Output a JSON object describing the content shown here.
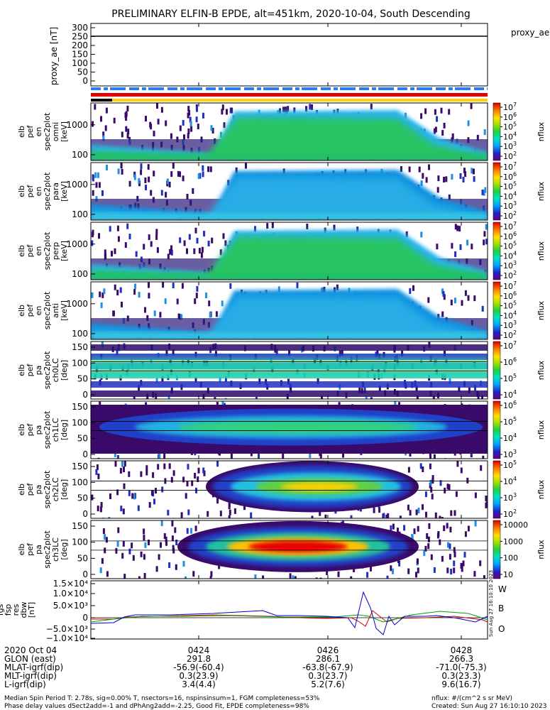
{
  "title": "PRELIMINARY ELFIN-B EPDE, alt=451km, 2020-10-04, South Descending",
  "colors": {
    "W": "#d40000",
    "B": "#00a000",
    "O": "#0000d0"
  },
  "chart_data": [
    {
      "type": "line",
      "panel": "proxy_ae",
      "ylabel": "proxy_ae [nT]",
      "legend": "proxy_ae",
      "yticks": [
        "300",
        "250",
        "200",
        "150",
        "100",
        "50",
        "0"
      ],
      "ylim": [
        -30,
        320
      ],
      "series": [
        {
          "name": "proxy_ae",
          "values": [
            245,
            245
          ]
        }
      ]
    },
    {
      "type": "heatmap",
      "panel": "en-omni",
      "ylabel": [
        "elb",
        "pef",
        "en",
        "spec2plot",
        "omni",
        "[keV]"
      ],
      "yticks": [
        "1000",
        "100"
      ],
      "cbar_label": "nflux",
      "cbar_ticks": [
        [
          "10",
          "7"
        ],
        [
          "10",
          "6"
        ],
        [
          "10",
          "5"
        ],
        [
          "10",
          "4"
        ],
        [
          "10",
          "3"
        ],
        [
          "10",
          "2"
        ]
      ]
    },
    {
      "type": "heatmap",
      "panel": "en-para",
      "ylabel": [
        "elb",
        "pef",
        "en",
        "spec2plot",
        "para",
        "[keV]"
      ],
      "yticks": [
        "1000",
        "100"
      ],
      "cbar_label": "nflux",
      "cbar_ticks": [
        [
          "10",
          "7"
        ],
        [
          "10",
          "6"
        ],
        [
          "10",
          "5"
        ],
        [
          "10",
          "4"
        ],
        [
          "10",
          "3"
        ],
        [
          "10",
          "2"
        ]
      ]
    },
    {
      "type": "heatmap",
      "panel": "en-perp",
      "ylabel": [
        "elb",
        "pef",
        "en",
        "spec2plot",
        "perp",
        "[keV]"
      ],
      "yticks": [
        "1000",
        "100"
      ],
      "cbar_label": "nflux",
      "cbar_ticks": [
        [
          "10",
          "7"
        ],
        [
          "10",
          "6"
        ],
        [
          "10",
          "5"
        ],
        [
          "10",
          "4"
        ],
        [
          "10",
          "3"
        ],
        [
          "10",
          "2"
        ]
      ]
    },
    {
      "type": "heatmap",
      "panel": "en-anti",
      "ylabel": [
        "elb",
        "pef",
        "en",
        "spec2plot",
        "anti",
        "[keV]"
      ],
      "yticks": [
        "1000",
        "100"
      ],
      "cbar_label": "nflux",
      "cbar_ticks": [
        [
          "10",
          "7"
        ],
        [
          "10",
          "6"
        ],
        [
          "10",
          "5"
        ],
        [
          "10",
          "4"
        ],
        [
          "10",
          "3"
        ],
        [
          "10",
          "2"
        ]
      ]
    },
    {
      "type": "heatmap",
      "panel": "ch0LC",
      "ylabel": [
        "elb",
        "pef",
        "pa",
        "spec2plot",
        "ch0LC",
        "[deg]"
      ],
      "yticks": [
        "150",
        "100",
        "50",
        "0"
      ],
      "cbar_label": "nflux",
      "cbar_ticks": [
        [
          "10",
          "7"
        ],
        [
          "10",
          "6"
        ],
        [
          "10",
          "5"
        ],
        [
          "10",
          "4"
        ]
      ]
    },
    {
      "type": "heatmap",
      "panel": "ch1LC",
      "ylabel": [
        "elb",
        "pef",
        "pa",
        "spec2plot",
        "ch1LC",
        "[deg]"
      ],
      "yticks": [
        "150",
        "100",
        "50",
        "0"
      ],
      "cbar_label": "nflux",
      "cbar_ticks": [
        [
          "10",
          "6"
        ],
        [
          "10",
          "5"
        ],
        [
          "10",
          "4"
        ],
        [
          "10",
          "3"
        ]
      ]
    },
    {
      "type": "heatmap",
      "panel": "ch2LC",
      "ylabel": [
        "elb",
        "pef",
        "pa",
        "spec2plot",
        "ch2LC",
        "[deg]"
      ],
      "yticks": [
        "150",
        "100",
        "50",
        "0"
      ],
      "cbar_label": "nflux",
      "cbar_ticks": [
        [
          "10",
          "5"
        ],
        [
          "10",
          "4"
        ],
        [
          "10",
          "3"
        ],
        [
          "10",
          "2"
        ]
      ]
    },
    {
      "type": "heatmap",
      "panel": "ch3LC",
      "ylabel": [
        "elb",
        "pef",
        "pa",
        "spec2plot",
        "ch3LC",
        "[deg]"
      ],
      "yticks": [
        "150",
        "100",
        "50",
        "0"
      ],
      "cbar_label": "nflux",
      "cbar_ticks": [
        [
          "10000",
          ""
        ],
        [
          "1000",
          ""
        ],
        [
          "100",
          ""
        ],
        [
          "10",
          ""
        ]
      ]
    },
    {
      "type": "line",
      "panel": "dBsp",
      "ylabel": [
        "fgs",
        "fsp",
        "res",
        "dbw",
        "[nT]"
      ],
      "yticks": [
        "1.5×10⁴",
        "1.0×10⁴",
        "5.0×10³",
        "0",
        "−5.0×10³",
        "−1.0×10⁴"
      ],
      "legend": [
        "W",
        "B",
        "O"
      ]
    }
  ],
  "xaxis": {
    "rows": [
      {
        "label": "2020 Oct 04",
        "values": [
          "0424",
          "0426",
          "0428"
        ]
      },
      {
        "label": "GLON (east)",
        "values": [
          "291.8",
          "286.1",
          "266.3"
        ]
      },
      {
        "label": "MLAT-igrf(dip)",
        "values": [
          "-56.9(-60.4)",
          "-63.8(-67.9)",
          "-71.0(-75.3)"
        ]
      },
      {
        "label": "MLT-igrf(dip)",
        "values": [
          "0.3(23.9)",
          "0.3(23.7)",
          "0.3(23.3)"
        ]
      },
      {
        "label": "L-igrf(dip)",
        "values": [
          "3.4(4.4)",
          "5.2(7.6)",
          "9.6(16.7)"
        ]
      }
    ]
  },
  "footer": {
    "line1": "Median Spin Period T: 2.78s, sig=0.00% T, nsectors=16, nspinsinsum=1, FGM completeness=53%",
    "line2": "Phase delay values dSect2add=-1 and dPhAng2add=-2.25, Good Fit, EPDE completeness=98%",
    "right1": "nflux: #/(cm^2 s sr MeV)",
    "right2": "Created: Sun Aug 27 16:10:10 2023"
  },
  "side_stamp": "Sun Aug 27 16:10:10 2023"
}
